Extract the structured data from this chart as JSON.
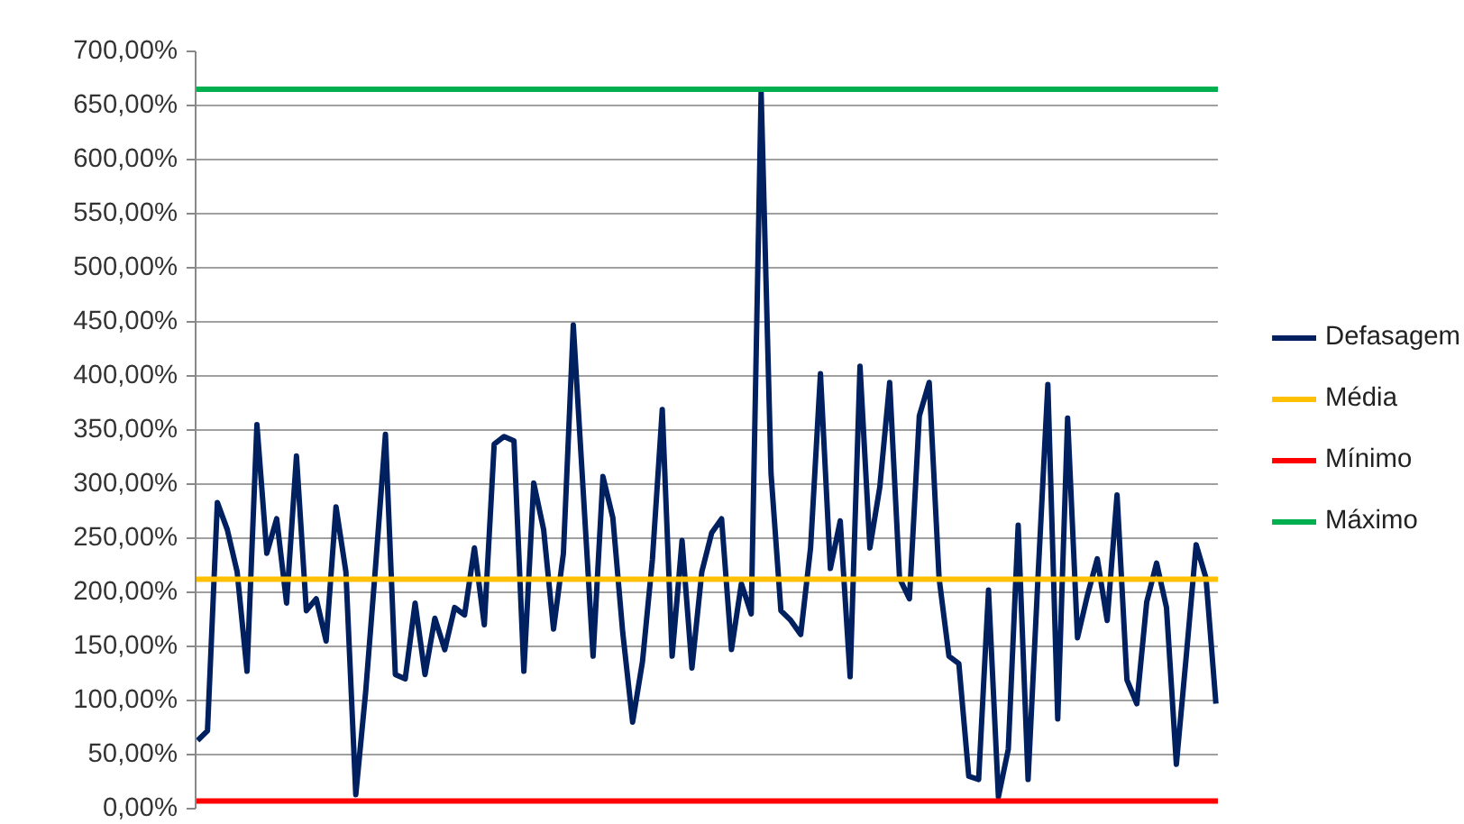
{
  "chart_data": {
    "type": "line",
    "categories": [
      null,
      null,
      null,
      null,
      null,
      null,
      null,
      null,
      null,
      null,
      null,
      null,
      null,
      null,
      null,
      null,
      null,
      null,
      null,
      null,
      null,
      null,
      null,
      null,
      null,
      null,
      null,
      null,
      null,
      null,
      null,
      null,
      null,
      null,
      null,
      null,
      null,
      null,
      null,
      null,
      null,
      null,
      null,
      null,
      null,
      null,
      null,
      null,
      null,
      null,
      null,
      null,
      null,
      null,
      null,
      null,
      null,
      null,
      null,
      null,
      null,
      null,
      null,
      null,
      null,
      null,
      null,
      null,
      null,
      null,
      null,
      null,
      null,
      null,
      null,
      null,
      null,
      null,
      null,
      null,
      null,
      null,
      null,
      null,
      null,
      null,
      null,
      null,
      null,
      null,
      null,
      null,
      null,
      null,
      null,
      null,
      null,
      null,
      null,
      null,
      null,
      null,
      null,
      null
    ],
    "series": [
      {
        "name": "Defasagem",
        "color": "#002060",
        "values": [
          63,
          72,
          283,
          258,
          219,
          127,
          355,
          236,
          268,
          190,
          326,
          183,
          194,
          155,
          279,
          219,
          13,
          108,
          224,
          346,
          124,
          120,
          190,
          124,
          176,
          147,
          186,
          179,
          241,
          170,
          337,
          344,
          340,
          127,
          301,
          258,
          166,
          236,
          447,
          294,
          141,
          307,
          269,
          163,
          80,
          136,
          230,
          369,
          141,
          248,
          130,
          219,
          255,
          268,
          147,
          208,
          180,
          662,
          310,
          183,
          174,
          161,
          241,
          402,
          222,
          266,
          122,
          409,
          241,
          297,
          394,
          213,
          194,
          363,
          394,
          213,
          141,
          134,
          30,
          27,
          202,
          11,
          55,
          262,
          27,
          213,
          392,
          83,
          361,
          158,
          197,
          231,
          174,
          290,
          119,
          97,
          191,
          227,
          186,
          41,
          141,
          244,
          213,
          97
        ]
      }
    ],
    "ref_lines": [
      {
        "axis": "y",
        "value": 212,
        "label": "Média",
        "color": "#ffc000"
      },
      {
        "axis": "y",
        "value": 7,
        "label": "Mínimo",
        "color": "#ff0000"
      },
      {
        "axis": "y",
        "value": 665,
        "label": "Máximo",
        "color": "#00b050"
      }
    ],
    "ylim": [
      0,
      700
    ],
    "yticks": [
      {
        "value": 0,
        "label": "0,00%"
      },
      {
        "value": 50,
        "label": "50,00%"
      },
      {
        "value": 100,
        "label": "100,00%"
      },
      {
        "value": 150,
        "label": "150,00%"
      },
      {
        "value": 200,
        "label": "200,00%"
      },
      {
        "value": 250,
        "label": "250,00%"
      },
      {
        "value": 300,
        "label": "300,00%"
      },
      {
        "value": 350,
        "label": "350,00%"
      },
      {
        "value": 400,
        "label": "400,00%"
      },
      {
        "value": 450,
        "label": "450,00%"
      },
      {
        "value": 500,
        "label": "500,00%"
      },
      {
        "value": 550,
        "label": "550,00%"
      },
      {
        "value": 600,
        "label": "600,00%"
      },
      {
        "value": 650,
        "label": "650,00%"
      },
      {
        "value": 700,
        "label": "700,00%"
      }
    ],
    "grid": "y",
    "legend": "right",
    "tick_labels": "y"
  }
}
